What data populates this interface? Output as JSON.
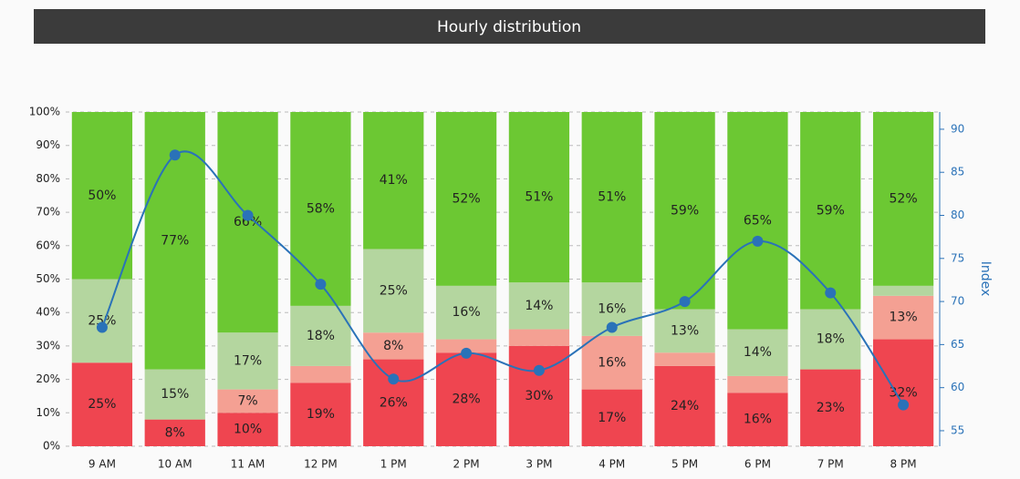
{
  "chart_data": {
    "type": "bar",
    "stacked": true,
    "title": "Hourly distribution",
    "y2label": "Index",
    "categories": [
      "9 AM",
      "10 AM",
      "11 AM",
      "12 PM",
      "1 PM",
      "2 PM",
      "3 PM",
      "4 PM",
      "5 PM",
      "6 PM",
      "7 PM",
      "8 PM"
    ],
    "series": [
      {
        "color": "#ef4550",
        "values": [
          25,
          8,
          10,
          19,
          26,
          28,
          30,
          17,
          24,
          16,
          23,
          32
        ],
        "value_labels": [
          "25%",
          "8%",
          "10%",
          "19%",
          "26%",
          "28%",
          "30%",
          "17%",
          "24%",
          "16%",
          "23%",
          "32%"
        ]
      },
      {
        "color": "#f4a093",
        "values": [
          0,
          0,
          7,
          5,
          8,
          4,
          5,
          16,
          4,
          5,
          0,
          13
        ],
        "value_labels": [
          null,
          null,
          "7%",
          null,
          "8%",
          null,
          null,
          "16%",
          null,
          null,
          null,
          "13%"
        ]
      },
      {
        "color": "#b4d69f",
        "values": [
          25,
          15,
          17,
          18,
          25,
          16,
          14,
          16,
          13,
          14,
          18,
          3
        ],
        "value_labels": [
          "25%",
          "15%",
          "17%",
          "18%",
          "25%",
          "16%",
          "14%",
          "16%",
          "13%",
          "14%",
          "18%",
          null
        ]
      },
      {
        "color": "#6cc833",
        "values": [
          50,
          77,
          66,
          58,
          41,
          52,
          51,
          51,
          59,
          65,
          59,
          52
        ],
        "value_labels": [
          "50%",
          "77%",
          "66%",
          "58%",
          "41%",
          "52%",
          "51%",
          "51%",
          "59%",
          "65%",
          "59%",
          "52%"
        ]
      },
      {
        "type": "line",
        "axis": "y2",
        "color": "#2a72b8",
        "values": [
          67,
          87,
          80,
          72,
          61,
          64,
          62,
          67,
          70,
          77,
          71,
          58
        ]
      }
    ],
    "ylim": [
      0,
      100
    ],
    "yticks": [
      {
        "value": 0,
        "label": "0%"
      },
      {
        "value": 10,
        "label": "10%"
      },
      {
        "value": 20,
        "label": "20%"
      },
      {
        "value": 30,
        "label": "30%"
      },
      {
        "value": 40,
        "label": "40%"
      },
      {
        "value": 50,
        "label": "50%"
      },
      {
        "value": 60,
        "label": "60%"
      },
      {
        "value": 70,
        "label": "70%"
      },
      {
        "value": 80,
        "label": "80%"
      },
      {
        "value": 90,
        "label": "90%"
      },
      {
        "value": 100,
        "label": "100%"
      }
    ],
    "y2lim": [
      53.2,
      92
    ],
    "y2ticks": [
      55,
      60,
      65,
      70,
      75,
      80,
      85,
      90
    ],
    "grid": true
  }
}
